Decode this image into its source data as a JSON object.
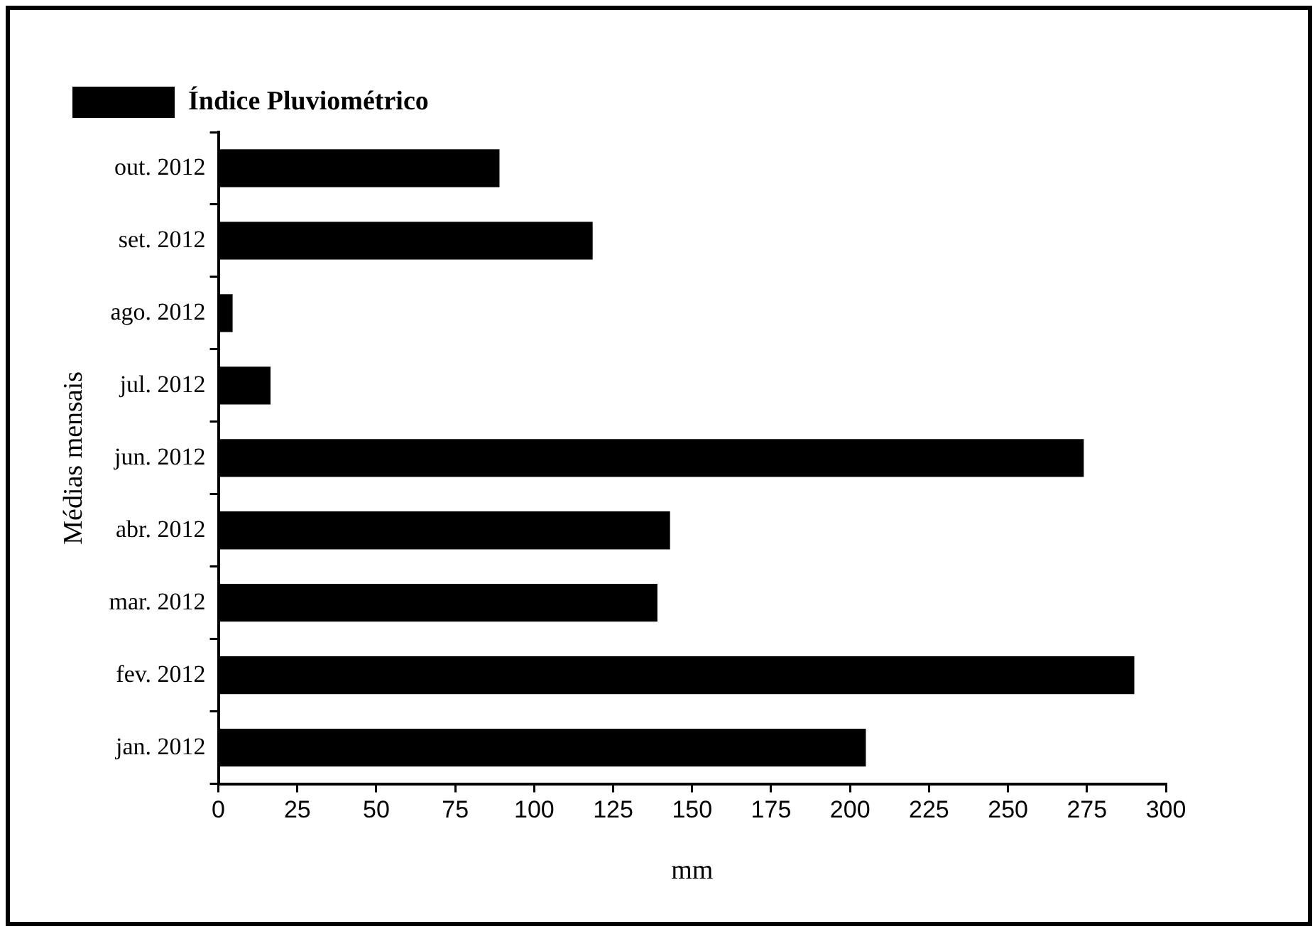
{
  "chart_data": {
    "type": "bar",
    "orientation": "horizontal",
    "xlabel": "mm",
    "ylabel": "Médias mensais",
    "categories": [
      "out. 2012",
      "set. 2012",
      "ago. 2012",
      "jul. 2012",
      "jun. 2012",
      "abr. 2012",
      "mar. 2012",
      "fev. 2012",
      "jan. 2012"
    ],
    "series": [
      {
        "name": "Índice Pluviométrico",
        "color": "#000000",
        "values": [
          89,
          118.5,
          4.5,
          16.5,
          274,
          143,
          139,
          290,
          205
        ]
      }
    ],
    "xlim": [
      0,
      300
    ],
    "xticks": [
      0,
      25,
      50,
      75,
      100,
      125,
      150,
      175,
      200,
      225,
      250,
      275,
      300
    ],
    "grid": false,
    "legend": "top left"
  }
}
